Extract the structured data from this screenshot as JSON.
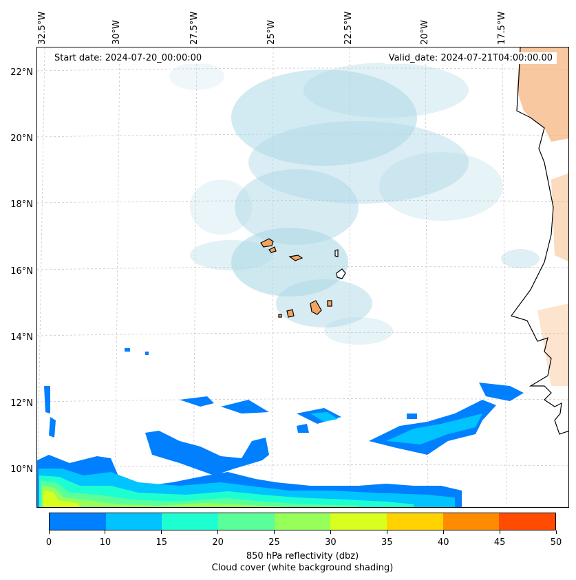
{
  "map": {
    "start_date": "Start date: 2024-07-20_00:00:00",
    "valid_date": "Valid_date: 2024-07-21T04:00:00.00",
    "lon_labels": [
      "32.5°W",
      "30°W",
      "27.5°W",
      "25°W",
      "22.5°W",
      "20°W",
      "17.5°W"
    ],
    "lat_labels": [
      "22°N",
      "20°N",
      "18°N",
      "16°N",
      "14°N",
      "12°N",
      "10°N"
    ],
    "land_color": "#f4a460",
    "cloud_color": "#add8e6",
    "dry_land_shading_color": "#f4a460"
  },
  "colorbar": {
    "label": "850 hPa reflectivity (dbz)",
    "sublabel": "Cloud cover (white background shading)",
    "ticks": [
      "0",
      "10",
      "15",
      "20",
      "25",
      "30",
      "35",
      "40",
      "45",
      "50"
    ],
    "colors": [
      "#007fff",
      "#00c3ff",
      "#1effd1",
      "#5aff9a",
      "#96ff5a",
      "#d8ff1e",
      "#ffd200",
      "#ff8c00",
      "#ff4c00"
    ]
  }
}
